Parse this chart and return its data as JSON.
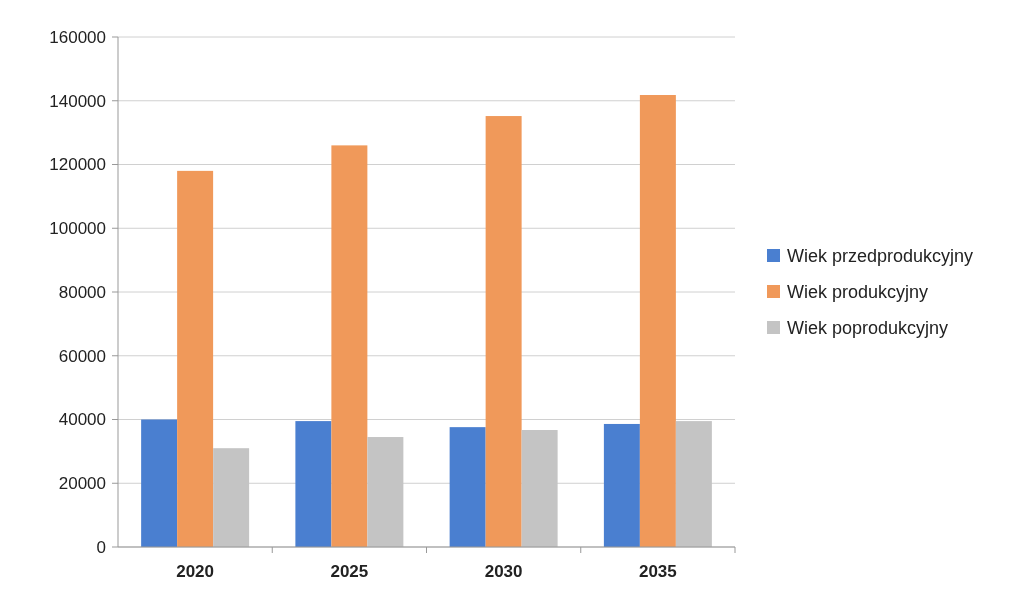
{
  "chart_data": {
    "type": "bar",
    "categories": [
      "2020",
      "2025",
      "2030",
      "2035"
    ],
    "series": [
      {
        "name": "Wiek przedprodukcyjny",
        "color": "#4a7fd0",
        "values": [
          40000,
          39500,
          37600,
          38600
        ]
      },
      {
        "name": "Wiek produkcyjny",
        "color": "#f0995a",
        "values": [
          118000,
          126000,
          135200,
          141800
        ]
      },
      {
        "name": "Wiek poprodukcyjny",
        "color": "#c4c4c4",
        "values": [
          31000,
          34500,
          36700,
          39500
        ]
      }
    ],
    "ylim": [
      0,
      160000
    ],
    "yticks": [
      0,
      20000,
      40000,
      60000,
      80000,
      100000,
      120000,
      140000,
      160000
    ],
    "grid": "y",
    "legend": "right"
  }
}
